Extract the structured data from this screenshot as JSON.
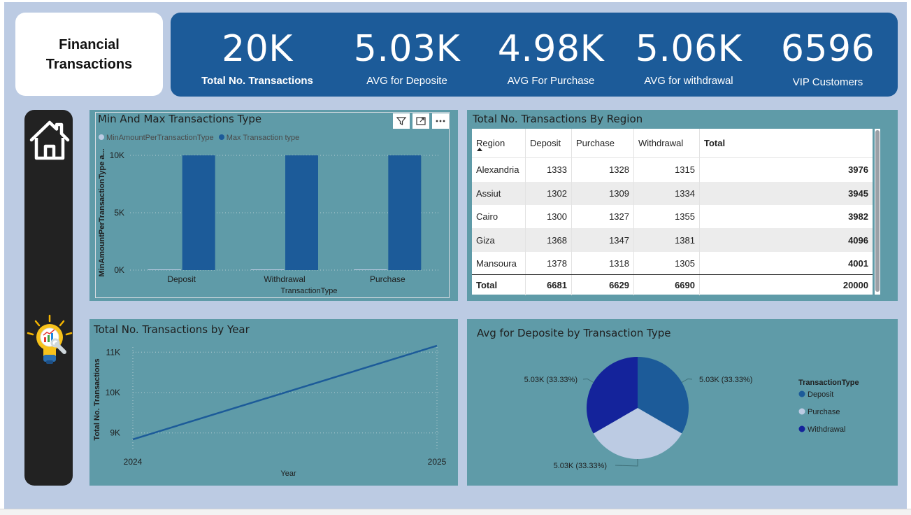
{
  "title": "Financial Transactions",
  "kpis": [
    {
      "value": "20K",
      "label": "Total No. Transactions"
    },
    {
      "value": "5.03K",
      "label": "AVG for Deposite"
    },
    {
      "value": "4.98K",
      "label": "AVG For Purchase"
    },
    {
      "value": "5.06K",
      "label": "AVG for withdrawal"
    },
    {
      "value": "6596",
      "label": "VIP Customers"
    }
  ],
  "sidebar": {
    "home_icon": "home-icon",
    "insight_icon": "lightbulb-chart-icon"
  },
  "colors": {
    "canvas": "#bccbe3",
    "kpi_bar": "#1c5b99",
    "panel": "#5f9ba8",
    "sidebar": "#222222",
    "bar_dark": "#1c5b99",
    "bar_light": "#bccbe3",
    "pie_withdrawal": "#14239b"
  },
  "min_max_panel": {
    "title": "Min And Max Transactions Type",
    "legend": [
      "MinAmountPerTransactionType",
      "Max Transaction type"
    ],
    "y_axis_label": "MinAmountPerTransactionType a...",
    "x_axis_label": "TransactionType",
    "y_ticks": [
      "10K",
      "5K",
      "0K"
    ]
  },
  "region_table": {
    "title": "Total No. Transactions By Region",
    "headers": [
      "Region",
      "Deposit",
      "Purchase",
      "Withdrawal",
      "Total"
    ],
    "rows": [
      [
        "Alexandria",
        "1333",
        "1328",
        "1315",
        "3976"
      ],
      [
        "Assiut",
        "1302",
        "1309",
        "1334",
        "3945"
      ],
      [
        "Cairo",
        "1300",
        "1327",
        "1355",
        "3982"
      ],
      [
        "Giza",
        "1368",
        "1347",
        "1381",
        "4096"
      ],
      [
        "Mansoura",
        "1378",
        "1318",
        "1305",
        "4001"
      ]
    ],
    "total_row": [
      "Total",
      "6681",
      "6629",
      "6690",
      "20000"
    ]
  },
  "year_panel": {
    "title": "Total No. Transactions by Year",
    "y_axis_label": "Total No. Transactions",
    "x_axis_label": "Year",
    "y_ticks": [
      "11K",
      "10K",
      "9K"
    ],
    "x_ticks": [
      "2024",
      "2025"
    ]
  },
  "pie_panel": {
    "title": "Avg for Deposite by Transaction Type",
    "legend_title": "TransactionType",
    "slice_labels": [
      "5.03K (33.33%)",
      "5.03K (33.33%)",
      "5.03K (33.33%)"
    ]
  },
  "chart_data": [
    {
      "type": "bar",
      "title": "Min And Max Transactions Type",
      "categories": [
        "Deposit",
        "Withdrawal",
        "Purchase"
      ],
      "series": [
        {
          "name": "MinAmountPerTransactionType",
          "values": [
            10,
            10,
            10
          ],
          "color": "#bccbe3"
        },
        {
          "name": "Max Transaction type",
          "values": [
            10000,
            10000,
            10000
          ],
          "color": "#1c5b99"
        }
      ],
      "xlabel": "TransactionType",
      "ylabel": "MinAmountPerTransactionType a...",
      "ylim": [
        0,
        10000
      ],
      "grid": true,
      "legend": "top-left"
    },
    {
      "type": "line",
      "title": "Total No. Transactions by Year",
      "x": [
        2024,
        2025
      ],
      "series": [
        {
          "values": [
            8840,
            11160
          ],
          "color": "#1c5b99"
        }
      ],
      "xlabel": "Year",
      "ylabel": "Total No. Transactions",
      "ylim": [
        8700,
        11300
      ],
      "grid": true
    },
    {
      "type": "pie",
      "title": "Avg for Deposite by Transaction Type",
      "categories": [
        "Deposit",
        "Purchase",
        "Withdrawal"
      ],
      "values": [
        5030,
        5030,
        5030
      ],
      "data_labels": [
        "5.03K (33.33%)",
        "5.03K (33.33%)",
        "5.03K (33.33%)"
      ],
      "colors": [
        "#1c5b99",
        "#bccbe3",
        "#14239b"
      ],
      "legend": "right"
    }
  ]
}
